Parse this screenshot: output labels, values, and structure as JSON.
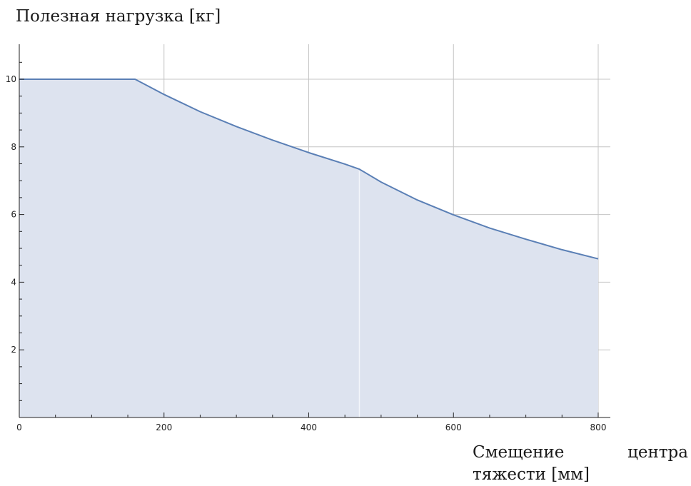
{
  "chart_data": {
    "type": "area",
    "ylabel": "Полезная нагрузка [кг]",
    "xlabel": "Смещение центра тяжести [мм]",
    "xlim": [
      0,
      816
    ],
    "ylim": [
      0,
      11
    ],
    "x_ticks": [
      0,
      200,
      400,
      600,
      800
    ],
    "y_ticks": [
      2,
      4,
      6,
      8,
      10
    ],
    "grid": true,
    "series": [
      {
        "x": [
          0,
          160,
          200,
          250,
          300,
          350,
          400,
          450,
          470,
          500,
          550,
          600,
          650,
          700,
          750,
          800
        ],
        "values": [
          10.0,
          10.0,
          9.55,
          9.04,
          8.6,
          8.2,
          7.83,
          7.49,
          7.34,
          6.96,
          6.43,
          5.99,
          5.6,
          5.27,
          4.96,
          4.69
        ]
      }
    ],
    "colors": {
      "line": "#5a7fb5",
      "fill": "#dde3ef",
      "grid": "#c4c4c4",
      "axis": "#222222"
    }
  }
}
